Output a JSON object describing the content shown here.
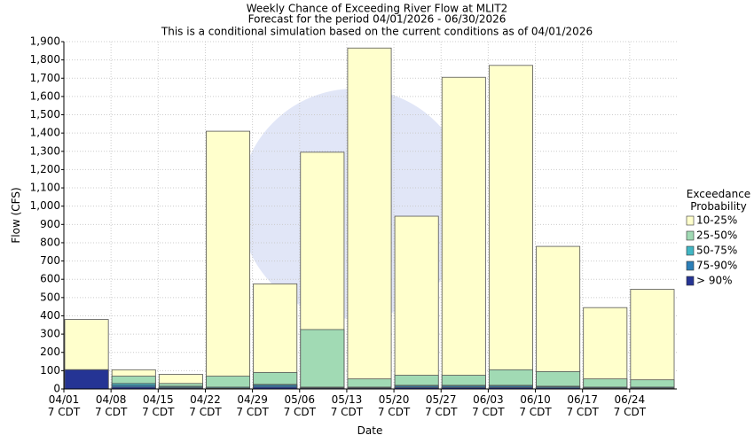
{
  "chart_data": {
    "type": "bar",
    "overlap": true,
    "title": [
      "Weekly Chance of Exceeding River Flow at MLIT2",
      "Forecast for the period 04/01/2026 - 06/30/2026",
      "This is a conditional simulation based on the current conditions as of 04/01/2026"
    ],
    "x_label": "Date",
    "y_label": "Flow (CFS)",
    "legend_title": [
      "Exceedance",
      "Probability"
    ],
    "categories": [
      [
        "04/01",
        "7 CDT"
      ],
      [
        "04/08",
        "7 CDT"
      ],
      [
        "04/15",
        "7 CDT"
      ],
      [
        "04/22",
        "7 CDT"
      ],
      [
        "04/29",
        "7 CDT"
      ],
      [
        "05/06",
        "7 CDT"
      ],
      [
        "05/13",
        "7 CDT"
      ],
      [
        "05/20",
        "7 CDT"
      ],
      [
        "05/27",
        "7 CDT"
      ],
      [
        "06/03",
        "7 CDT"
      ],
      [
        "06/10",
        "7 CDT"
      ],
      [
        "06/17",
        "7 CDT"
      ],
      [
        "06/24",
        "7 CDT"
      ]
    ],
    "series": [
      {
        "name": "10-25%",
        "color": "#ffffcc",
        "values": [
          380,
          105,
          80,
          1410,
          575,
          1295,
          1865,
          945,
          1705,
          1770,
          780,
          445,
          545
        ]
      },
      {
        "name": "25-50%",
        "color": "#a1dab4",
        "values": [
          105,
          70,
          30,
          70,
          90,
          325,
          55,
          75,
          75,
          105,
          95,
          55,
          50
        ]
      },
      {
        "name": "50-75%",
        "color": "#41b6c4",
        "values": [
          105,
          30,
          15,
          10,
          25,
          10,
          10,
          20,
          20,
          20,
          15,
          10,
          10
        ]
      },
      {
        "name": "75-90%",
        "color": "#2c7fb8",
        "values": [
          105,
          20,
          10,
          5,
          20,
          8,
          8,
          15,
          15,
          15,
          12,
          8,
          8
        ]
      },
      {
        "name": "> 90%",
        "color": "#253494",
        "values": [
          105,
          10,
          5,
          3,
          10,
          5,
          5,
          8,
          8,
          8,
          6,
          4,
          4
        ]
      }
    ],
    "ylim": [
      0,
      1900
    ],
    "yticks": [
      0,
      100,
      200,
      300,
      400,
      500,
      600,
      700,
      800,
      900,
      {
        "value": 1000,
        "label": "1,000"
      },
      {
        "value": 1100,
        "label": "1,100"
      },
      {
        "value": 1200,
        "label": "1,200"
      },
      {
        "value": 1300,
        "label": "1,300"
      },
      {
        "value": 1400,
        "label": "1,400"
      },
      {
        "value": 1500,
        "label": "1,500"
      },
      {
        "value": 1600,
        "label": "1,600"
      },
      {
        "value": 1700,
        "label": "1,700"
      },
      {
        "value": 1800,
        "label": "1,800"
      },
      {
        "value": 1900,
        "label": "1,900"
      }
    ],
    "grid": true
  }
}
